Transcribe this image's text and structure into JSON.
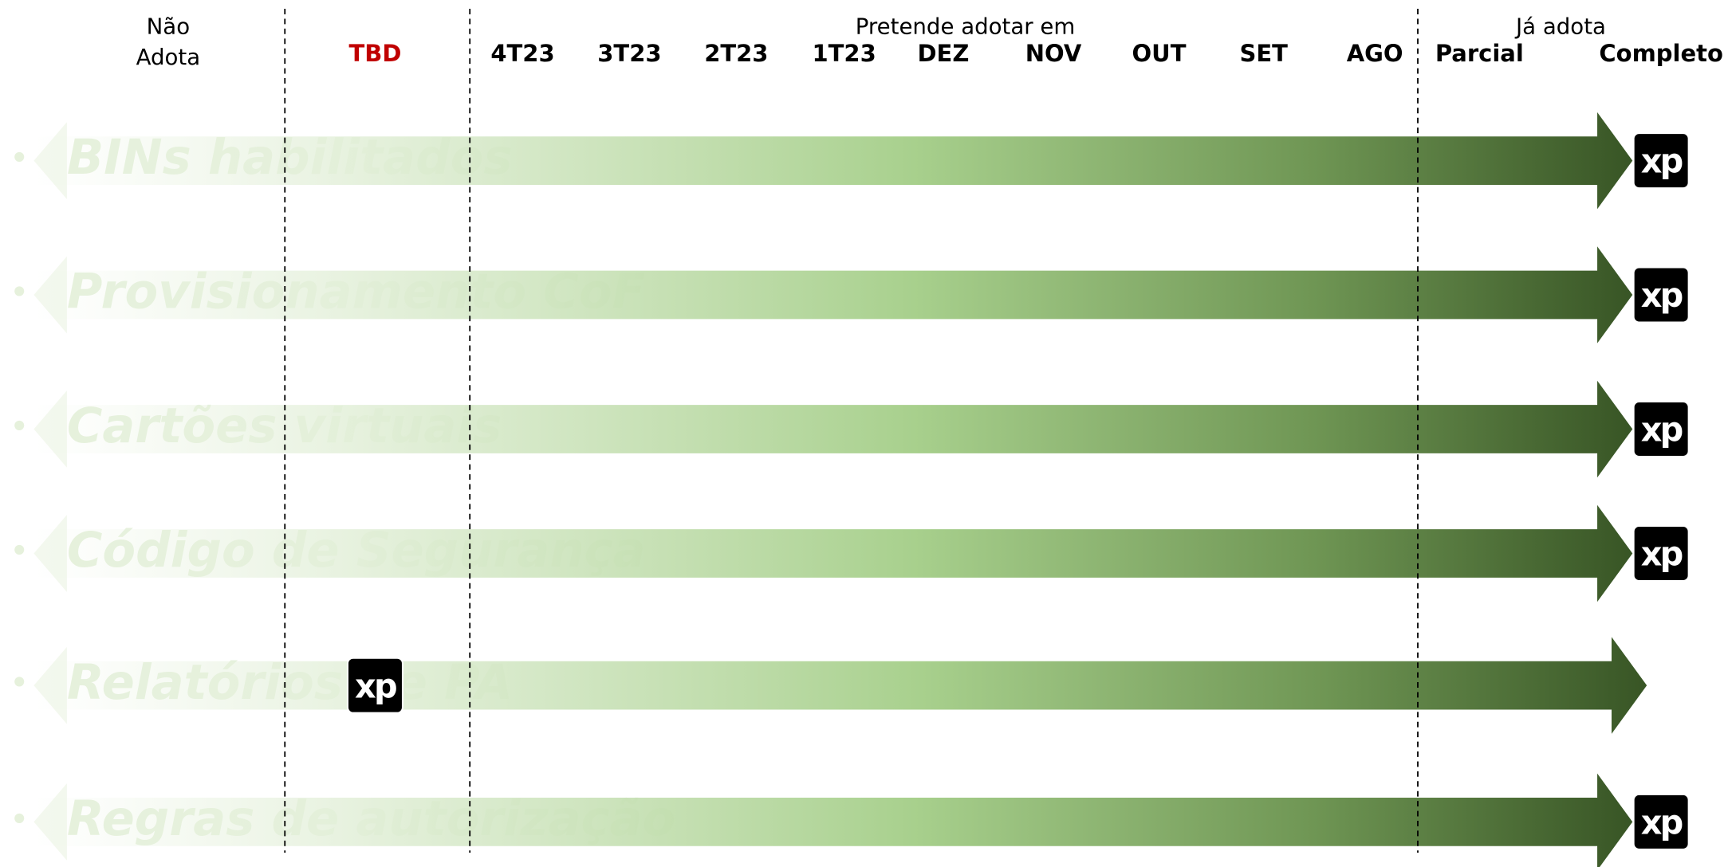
{
  "header": {
    "nao_adota": [
      "Não",
      "Adota"
    ],
    "tbd": "TBD",
    "pretende": "Pretende adotar em",
    "months": [
      "4T23",
      "3T23",
      "2T23",
      "1T23",
      "DEZ",
      "NOV",
      "OUT",
      "SET",
      "AGO"
    ],
    "ja_adota": "Já adota",
    "parcial": "Parcial",
    "completo": "Completo"
  },
  "bullet": "•",
  "logo_text": "xp",
  "rows": [
    {
      "label": "BINs habilitados",
      "xp": "Completo"
    },
    {
      "label": "Provisionamento CoF",
      "xp": "Completo"
    },
    {
      "label": "Cartões virtuais",
      "xp": "Completo"
    },
    {
      "label": "Código de Segurança",
      "xp": "Completo"
    },
    {
      "label": "Relatórios de PA",
      "xp": "TBD"
    },
    {
      "label": "Regras de autorização",
      "xp": "Completo"
    }
  ]
}
